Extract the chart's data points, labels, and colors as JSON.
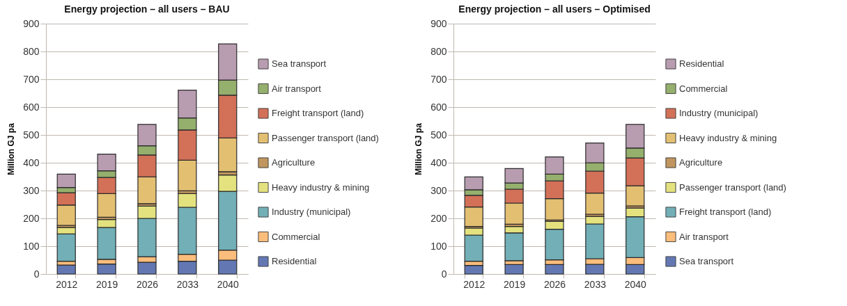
{
  "chart_data": [
    {
      "type": "bar",
      "title": "Energy projection – all users – BAU",
      "ylabel": "Million GJ pa",
      "categories": [
        "2012",
        "2019",
        "2026",
        "2033",
        "2040"
      ],
      "stacked": true,
      "ylim": [
        0,
        900
      ],
      "yticks": [
        0,
        100,
        200,
        300,
        400,
        500,
        600,
        700,
        800,
        900
      ],
      "grid": "y",
      "legend": "right",
      "series": [
        {
          "name": "Residential",
          "color": "#6378b3",
          "values": [
            32,
            36,
            42,
            46,
            50
          ]
        },
        {
          "name": "Commercial",
          "color": "#fbbd7c",
          "values": [
            14,
            17,
            20,
            25,
            36
          ]
        },
        {
          "name": "Industry (municipal)",
          "color": "#72afb6",
          "values": [
            98,
            114,
            138,
            169,
            211
          ]
        },
        {
          "name": "Heavy industry & mining",
          "color": "#e3e27f",
          "values": [
            23,
            29,
            44,
            49,
            59
          ]
        },
        {
          "name": "Agriculture",
          "color": "#c0955f",
          "values": [
            8,
            8,
            9,
            10,
            12
          ]
        },
        {
          "name": "Passenger transport (land)",
          "color": "#e3bf72",
          "values": [
            73,
            85,
            96,
            110,
            121
          ]
        },
        {
          "name": "Freight transport (land)",
          "color": "#d37058",
          "values": [
            44,
            58,
            79,
            109,
            154
          ]
        },
        {
          "name": "Air transport",
          "color": "#95af6d",
          "values": [
            19,
            24,
            33,
            43,
            54
          ]
        },
        {
          "name": "Sea transport",
          "color": "#b89cb0",
          "values": [
            48,
            60,
            77,
            100,
            130
          ]
        }
      ]
    },
    {
      "type": "bar",
      "title": "Energy projection – all users – Optimised",
      "ylabel": "Million GJ pa",
      "categories": [
        "2012",
        "2019",
        "2026",
        "2033",
        "2040"
      ],
      "stacked": true,
      "ylim": [
        0,
        900
      ],
      "yticks": [
        0,
        100,
        200,
        300,
        400,
        500,
        600,
        700,
        800,
        900
      ],
      "grid": "y",
      "legend": "right",
      "series": [
        {
          "name": "Sea transport",
          "color": "#6378b3",
          "values": [
            31,
            34,
            34,
            35,
            34
          ]
        },
        {
          "name": "Air transport",
          "color": "#fbbd7c",
          "values": [
            15,
            14,
            17,
            20,
            25
          ]
        },
        {
          "name": "Freight transport (land)",
          "color": "#72afb6",
          "values": [
            94,
            100,
            110,
            125,
            147
          ]
        },
        {
          "name": "Passenger transport (land)",
          "color": "#e3e27f",
          "values": [
            25,
            23,
            28,
            27,
            31
          ]
        },
        {
          "name": "Agriculture",
          "color": "#c0955f",
          "values": [
            6,
            8,
            5,
            8,
            8
          ]
        },
        {
          "name": "Heavy industry & mining",
          "color": "#e3bf72",
          "values": [
            70,
            76,
            77,
            76,
            72
          ]
        },
        {
          "name": "Industry (municipal)",
          "color": "#d37058",
          "values": [
            42,
            50,
            64,
            79,
            100
          ]
        },
        {
          "name": "Commercial",
          "color": "#95af6d",
          "values": [
            20,
            22,
            24,
            30,
            36
          ]
        },
        {
          "name": "Residential",
          "color": "#b89cb0",
          "values": [
            46,
            52,
            62,
            71,
            85
          ]
        }
      ]
    }
  ]
}
